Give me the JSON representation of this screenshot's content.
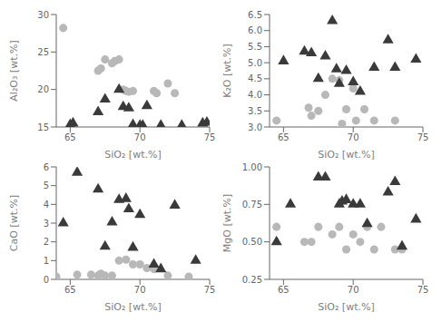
{
  "chart_data": [
    {
      "type": "scatter",
      "xlabel": "SiO₂ [wt.%]",
      "ylabel": "Al₂O₃ [wt.%]",
      "xlim": [
        64,
        75
      ],
      "xticks": [
        65,
        70,
        75
      ],
      "ylim": [
        15,
        30
      ],
      "yticks": [
        15,
        20,
        25,
        30
      ],
      "grid": false,
      "series": [
        {
          "color": "#b8b8b8",
          "marker": "circle",
          "x": [
            64.5,
            67.0,
            67.2,
            67.5,
            68.0,
            68.2,
            68.5,
            68.8,
            69.0,
            69.2,
            69.5,
            71.0,
            71.2,
            72.0,
            72.5
          ],
          "values": [
            28.2,
            22.5,
            22.8,
            24.0,
            23.5,
            23.8,
            24.0,
            20.0,
            19.8,
            19.7,
            19.8,
            19.8,
            19.5,
            20.8,
            19.5
          ]
        },
        {
          "color": "#3a3a3a",
          "marker": "triangle",
          "x": [
            65.0,
            65.2,
            67.0,
            67.5,
            68.5,
            68.8,
            69.2,
            69.5,
            70.0,
            70.2,
            70.5,
            71.5,
            73.0,
            74.5,
            74.8
          ],
          "values": [
            15.3,
            15.5,
            17.0,
            18.7,
            20.0,
            17.7,
            17.5,
            15.3,
            15.2,
            15.2,
            17.8,
            15.2,
            15.2,
            15.5,
            15.6
          ]
        }
      ]
    },
    {
      "type": "scatter",
      "xlabel": "SiO₂ [wt.%]",
      "ylabel": "K₂O [wt.%]",
      "xlim": [
        64,
        75
      ],
      "xticks": [
        65,
        70,
        75
      ],
      "ylim": [
        3.0,
        6.5
      ],
      "yticks": [
        {
          "value": 3,
          "label": "3.0"
        },
        3.5,
        {
          "value": 4,
          "label": "4.0"
        },
        4.5,
        {
          "value": 5,
          "label": "5.0"
        },
        5.5,
        {
          "value": 6,
          "label": "6.0"
        },
        6.5
      ],
      "grid": false,
      "series": [
        {
          "color": "#b8b8b8",
          "marker": "circle",
          "x": [
            64.5,
            66.8,
            67.0,
            67.5,
            68.0,
            68.5,
            69.0,
            69.2,
            69.5,
            70.0,
            70.2,
            70.8,
            71.5,
            73.0
          ],
          "values": [
            3.2,
            3.6,
            3.35,
            3.5,
            4.0,
            4.5,
            4.45,
            3.1,
            3.55,
            4.2,
            3.2,
            3.55,
            3.2,
            3.2
          ]
        },
        {
          "color": "#3a3a3a",
          "marker": "triangle",
          "x": [
            65.0,
            66.5,
            67.0,
            67.5,
            68.0,
            68.5,
            68.8,
            69.0,
            69.5,
            70.0,
            70.5,
            71.5,
            72.5,
            73.0,
            74.5
          ],
          "values": [
            5.05,
            5.35,
            5.3,
            4.5,
            5.2,
            6.3,
            4.8,
            4.35,
            4.75,
            4.4,
            4.1,
            4.85,
            5.7,
            4.85,
            5.1
          ]
        }
      ]
    },
    {
      "type": "scatter",
      "xlabel": "SiO₂ [wt.%]",
      "ylabel": "CaO [wt.%]",
      "xlim": [
        64,
        75
      ],
      "xticks": [
        65,
        70,
        75
      ],
      "ylim": [
        0,
        6
      ],
      "yticks": [
        0,
        1,
        2,
        3,
        4,
        5,
        6
      ],
      "grid": false,
      "series": [
        {
          "color": "#b8b8b8",
          "marker": "circle",
          "x": [
            64.0,
            65.5,
            66.5,
            67.0,
            67.2,
            67.5,
            68.0,
            68.5,
            69.0,
            69.5,
            70.0,
            70.5,
            71.0,
            72.0,
            73.5
          ],
          "values": [
            0.15,
            0.25,
            0.25,
            0.2,
            0.3,
            0.2,
            0.2,
            1.0,
            1.05,
            0.8,
            0.8,
            0.6,
            0.55,
            0.2,
            0.15
          ]
        },
        {
          "color": "#3a3a3a",
          "marker": "triangle",
          "x": [
            64.5,
            65.5,
            67.0,
            67.5,
            68.0,
            68.5,
            69.0,
            69.2,
            69.5,
            70.0,
            71.0,
            71.5,
            72.5,
            74.0
          ],
          "values": [
            3.0,
            5.7,
            4.8,
            1.75,
            3.05,
            4.25,
            4.3,
            3.75,
            1.7,
            3.45,
            0.8,
            0.55,
            3.95,
            1.0
          ]
        }
      ]
    },
    {
      "type": "scatter",
      "xlabel": "SiO₂ [wt.%]",
      "ylabel": "MgO [wt.%]",
      "xlim": [
        64,
        75
      ],
      "xticks": [
        65,
        70,
        75
      ],
      "ylim": [
        0.25,
        1.0
      ],
      "yticks": [
        0.25,
        {
          "value": 0.5,
          "label": "0.50"
        },
        0.75,
        {
          "value": 1,
          "label": "1.00"
        }
      ],
      "grid": false,
      "series": [
        {
          "color": "#b8b8b8",
          "marker": "circle",
          "x": [
            64.5,
            66.5,
            67.0,
            67.5,
            68.5,
            69.0,
            69.5,
            70.0,
            70.5,
            71.0,
            71.5,
            72.0,
            73.0,
            73.5
          ],
          "values": [
            0.6,
            0.5,
            0.5,
            0.6,
            0.55,
            0.6,
            0.45,
            0.55,
            0.5,
            0.6,
            0.45,
            0.6,
            0.45,
            0.45
          ]
        },
        {
          "color": "#3a3a3a",
          "marker": "triangle",
          "x": [
            64.5,
            65.5,
            67.5,
            68.0,
            69.0,
            69.2,
            69.5,
            70.0,
            70.5,
            71.0,
            72.5,
            73.0,
            73.5,
            74.5
          ],
          "values": [
            0.5,
            0.75,
            0.93,
            0.93,
            0.75,
            0.77,
            0.78,
            0.75,
            0.75,
            0.62,
            0.83,
            0.9,
            0.47,
            0.65
          ]
        }
      ]
    }
  ]
}
